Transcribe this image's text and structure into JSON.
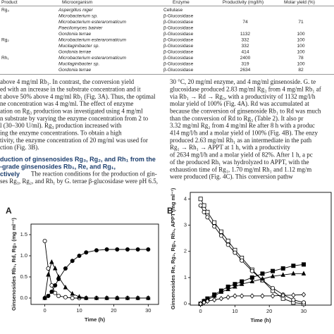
{
  "table": {
    "header": {
      "product": "Product",
      "microorganism": "Microorganism",
      "enzyme": "Enzyme",
      "productivity": "Productivity (mg/l/h)",
      "yield": "Molar yield (%)"
    },
    "rows": [
      {
        "product": "Rg₃",
        "microorganism": "Aspergillus niger",
        "enzyme": "Cellulase"
      },
      {
        "microorganism": "Microbacterium sp.",
        "enzyme": "β-Glucosidase"
      },
      {
        "microorganism": "Microbacterium esteraromaticum",
        "enzyme": "β-Glucosidase",
        "productivity": "74",
        "yield": "71"
      },
      {
        "microorganism": "Paecilomyces bainier",
        "enzyme": "β-Glucosidase"
      },
      {
        "microorganism": "Gordonia terrae",
        "enzyme": "β-Glucosidase",
        "productivity": "1132",
        "yield": "100"
      },
      {
        "product": "Rg₂",
        "microorganism": "Microbacterium esteraromaticum",
        "enzyme": "β-Glucosidase",
        "productivity": "332",
        "yield": "100"
      },
      {
        "microorganism": "Mucilaginibacter sp.",
        "enzyme": "β-Glucosidase",
        "productivity": "332",
        "yield": "100"
      },
      {
        "microorganism": "Gordonia terrae",
        "enzyme": "β-Glucosidase",
        "productivity": "414",
        "yield": "100"
      },
      {
        "product": "Rh₁",
        "microorganism": "Microbacterium esteraromaticum",
        "enzyme": "β-Glucosidase",
        "productivity": "2400",
        "yield": "78"
      },
      {
        "microorganism": "Mucilaginibacter sp.",
        "enzyme": "β-Glucosidase",
        "productivity": "319",
        "yield": "100"
      },
      {
        "microorganism": "Gordonia terrae",
        "enzyme": "β-Glucosidase",
        "productivity": "2634",
        "yield": "82"
      }
    ]
  },
  "text": {
    "left": [
      "above 4 mg/ml Rb₁. In contrast, the conversion yield",
      "ed with an increase in the substrate concentration and it",
      "t above 50% above 4 mg/ml Rb₁ (Fig. 3A). Thus, the optimal",
      "ne concentration was 4 mg/ml. The effect of enzyme",
      "ation on Rg₃ production was investigated using 4 mg/ml",
      "n substrate by varying the enzyme concentration from 2 to",
      "l (30–300 U/ml). Rg₃ production increased with",
      "ing the enzyme concentrations. To obtain a high",
      "tivity, the enzyme concentration of 20 mg/ml was used for",
      "ction (Fig. 3B)."
    ],
    "heading": [
      "duction of ginsenosides Rg₃, Rg₂, and Rh₁ from the",
      "-grade ginsenosides Rb₁, Re, and Rg₁,",
      "ctively"
    ],
    "left_after": [
      "The reaction conditions for the production of gin-",
      "ses Rg₃, Rg₂, and Rh₁ by G. terrae β-glucosidase were pH 6.5,"
    ],
    "right": [
      "30 °C, 20 mg/ml enzyme, and 4 mg/ml ginsenoside. G. te",
      "glucosidase produced 2.83 mg/ml Rg₃ from 4 mg/ml Rb₁ af",
      "via Rb₁ → Rd → Rg₃, with a productivity of 1132 mg/l/h",
      "molar yield of 100% (Fig. 4A). Rd was accumulated at",
      "because the conversion of ginsenoside Rb₁ to Rd was much",
      "than the conversion of Rd to Rg₃ (Table 2). It also pr",
      "3.32 mg/ml Rg₂ from 4 mg/ml Re after 8 h with a produc",
      "414 mg/l/h and a molar yield of 100% (Fig. 4B). The enzy",
      "produced 2.63 mg/ml Rh₁ as an intermediate in the path",
      "Rg₁ → Rh₁ → APPT at 1 h, with a productivity",
      "of 2634 mg/l/h and a molar yield of 82%. After 1 h, a pc",
      "of the produced Rh₁ was hydrolyzed to APPT, with the",
      "exhaustion time of Rg₁, 1.70 mg/ml Rh₁ and 1.12 mg/m",
      "were produced (Fig. 4C). This conversion pathw"
    ]
  },
  "chart_data": [
    {
      "type": "line",
      "panel_label": "A",
      "x_label": "Time (h)",
      "y_label": "Ginsenosides Rb₁, Rd, Rg₃ (mg ml⁻¹)",
      "x": [
        0,
        1,
        2,
        3,
        4,
        6,
        8,
        10,
        12,
        15,
        18,
        21,
        24,
        27,
        30
      ],
      "xlim": [
        -4,
        33
      ],
      "xticks": [
        0,
        10,
        20,
        30
      ],
      "ylim": [
        -0.15,
        1.75
      ],
      "yticks": [
        {
          "value": 0,
          "label": "0.0"
        },
        {
          "value": 0.5,
          "label": "0.5"
        },
        {
          "value": 1,
          "label": "1.0"
        },
        {
          "value": 1.5,
          "label": "1.5"
        }
      ],
      "series": [
        {
          "color": "#000000",
          "marker": "circle-open",
          "values": [
            1.35,
            0.7,
            0.3,
            0.12,
            0.05,
            0.02,
            0,
            0,
            0,
            0,
            0,
            0,
            0,
            0,
            0
          ]
        },
        {
          "color": "#000000",
          "marker": "triangle-filled",
          "values": [
            0,
            0.55,
            0.85,
            0.7,
            0.5,
            0.25,
            0.1,
            0.03,
            0,
            0,
            0,
            0,
            0,
            0,
            0
          ]
        },
        {
          "color": "#000000",
          "marker": "circle-filled",
          "values": [
            0,
            0.05,
            0.15,
            0.3,
            0.45,
            0.7,
            0.88,
            1.0,
            1.08,
            1.13,
            1.15,
            1.15,
            1.15,
            1.15,
            1.15
          ]
        }
      ]
    },
    {
      "type": "line",
      "panel_label": "B",
      "x_label": "Time (h)",
      "y_label": "Ginsenosides Re, Rg₂, Rg₁, Rh₁, APPT (mg ml⁻¹)",
      "x": [
        0,
        1,
        2,
        4,
        6,
        8,
        10,
        12,
        15,
        18,
        21,
        24,
        27,
        30
      ],
      "xlim": [
        -3,
        38
      ],
      "xticks": [
        0,
        10,
        20,
        30
      ],
      "ylim": [
        -0.05,
        4.25
      ],
      "yticks": [
        0,
        1,
        2,
        3,
        4
      ],
      "series": [
        {
          "color": "#000000",
          "marker": "square-open",
          "values": [
            4.0,
            3.75,
            3.5,
            3.1,
            2.75,
            2.4,
            2.05,
            1.75,
            1.3,
            0.9,
            0.5,
            0.2,
            0.05,
            0
          ]
        },
        {
          "color": "#000000",
          "marker": "circle-open",
          "values": [
            3.75,
            3.5,
            3.3,
            2.95,
            2.6,
            2.25,
            1.95,
            1.65,
            1.25,
            0.9,
            0.6,
            0.35,
            0.15,
            0.05
          ]
        },
        {
          "color": "#000000",
          "marker": "square-filled",
          "values": [
            0,
            0.1,
            0.2,
            0.35,
            0.5,
            0.65,
            0.75,
            0.85,
            1.0,
            1.15,
            1.25,
            1.35,
            1.45,
            1.5
          ]
        },
        {
          "color": "#000000",
          "marker": "triangle-filled",
          "values": [
            0,
            0.1,
            0.15,
            0.3,
            0.45,
            0.55,
            0.65,
            0.75,
            0.85,
            0.95,
            1.05,
            1.1,
            1.15,
            1.15
          ]
        },
        {
          "color": "#000000",
          "marker": "diamond-open",
          "values": [
            0,
            0.05,
            0.1,
            0.15,
            0.2,
            0.25,
            0.3,
            0.3,
            0.3,
            0.3,
            0.3,
            0.32,
            0.33,
            0.35
          ]
        }
      ]
    }
  ]
}
